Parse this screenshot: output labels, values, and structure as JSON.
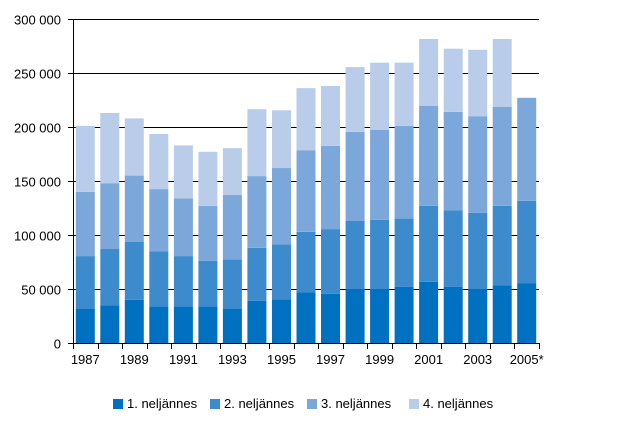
{
  "chart_data": {
    "type": "bar",
    "stacked": true,
    "title": "",
    "xlabel": "",
    "ylabel": "",
    "ylim": [
      0,
      300000
    ],
    "yticks": [
      0,
      50000,
      100000,
      150000,
      200000,
      250000,
      300000
    ],
    "ytick_labels": [
      "0",
      "50 000",
      "100 000",
      "150 000",
      "200 000",
      "250 000",
      "300 000"
    ],
    "grid": true,
    "categories": [
      "1987",
      "1988",
      "1989",
      "1990",
      "1991",
      "1992",
      "1993",
      "1994",
      "1995",
      "1996",
      "1997",
      "1998",
      "1999",
      "2000",
      "2001",
      "2002",
      "2003",
      "2004",
      "2005*"
    ],
    "xtick_labels": [
      "1987",
      "1989",
      "1991",
      "1993",
      "1995",
      "1997",
      "1999",
      "2001",
      "2003",
      "2005*"
    ],
    "legend_position": "bottom",
    "series": [
      {
        "name": "1. neljännes",
        "color": "#0070c0",
        "values": [
          31500,
          35000,
          40000,
          34000,
          34000,
          34000,
          31500,
          39000,
          40500,
          47000,
          45500,
          50000,
          50000,
          52000,
          56500,
          52000,
          50000,
          53500,
          55500
        ]
      },
      {
        "name": "2. neljännes",
        "color": "#3d8bcd",
        "values": [
          49000,
          52000,
          53500,
          51000,
          46500,
          42000,
          46000,
          49000,
          51000,
          56000,
          60000,
          63000,
          64000,
          63500,
          70500,
          71000,
          70500,
          73500,
          76000
        ]
      },
      {
        "name": "3. neljännes",
        "color": "#7ca7da",
        "values": [
          59500,
          61000,
          61500,
          57500,
          53500,
          51000,
          59500,
          66500,
          70500,
          75500,
          77000,
          82500,
          83500,
          85500,
          92500,
          91000,
          89500,
          91500,
          95500
        ]
      },
      {
        "name": "4. neljännes",
        "color": "#b9cdea",
        "values": [
          61000,
          65000,
          53000,
          51000,
          49000,
          50000,
          43500,
          62000,
          53500,
          57500,
          55500,
          60000,
          62000,
          58500,
          62000,
          58500,
          61500,
          63000,
          0
        ]
      }
    ]
  }
}
